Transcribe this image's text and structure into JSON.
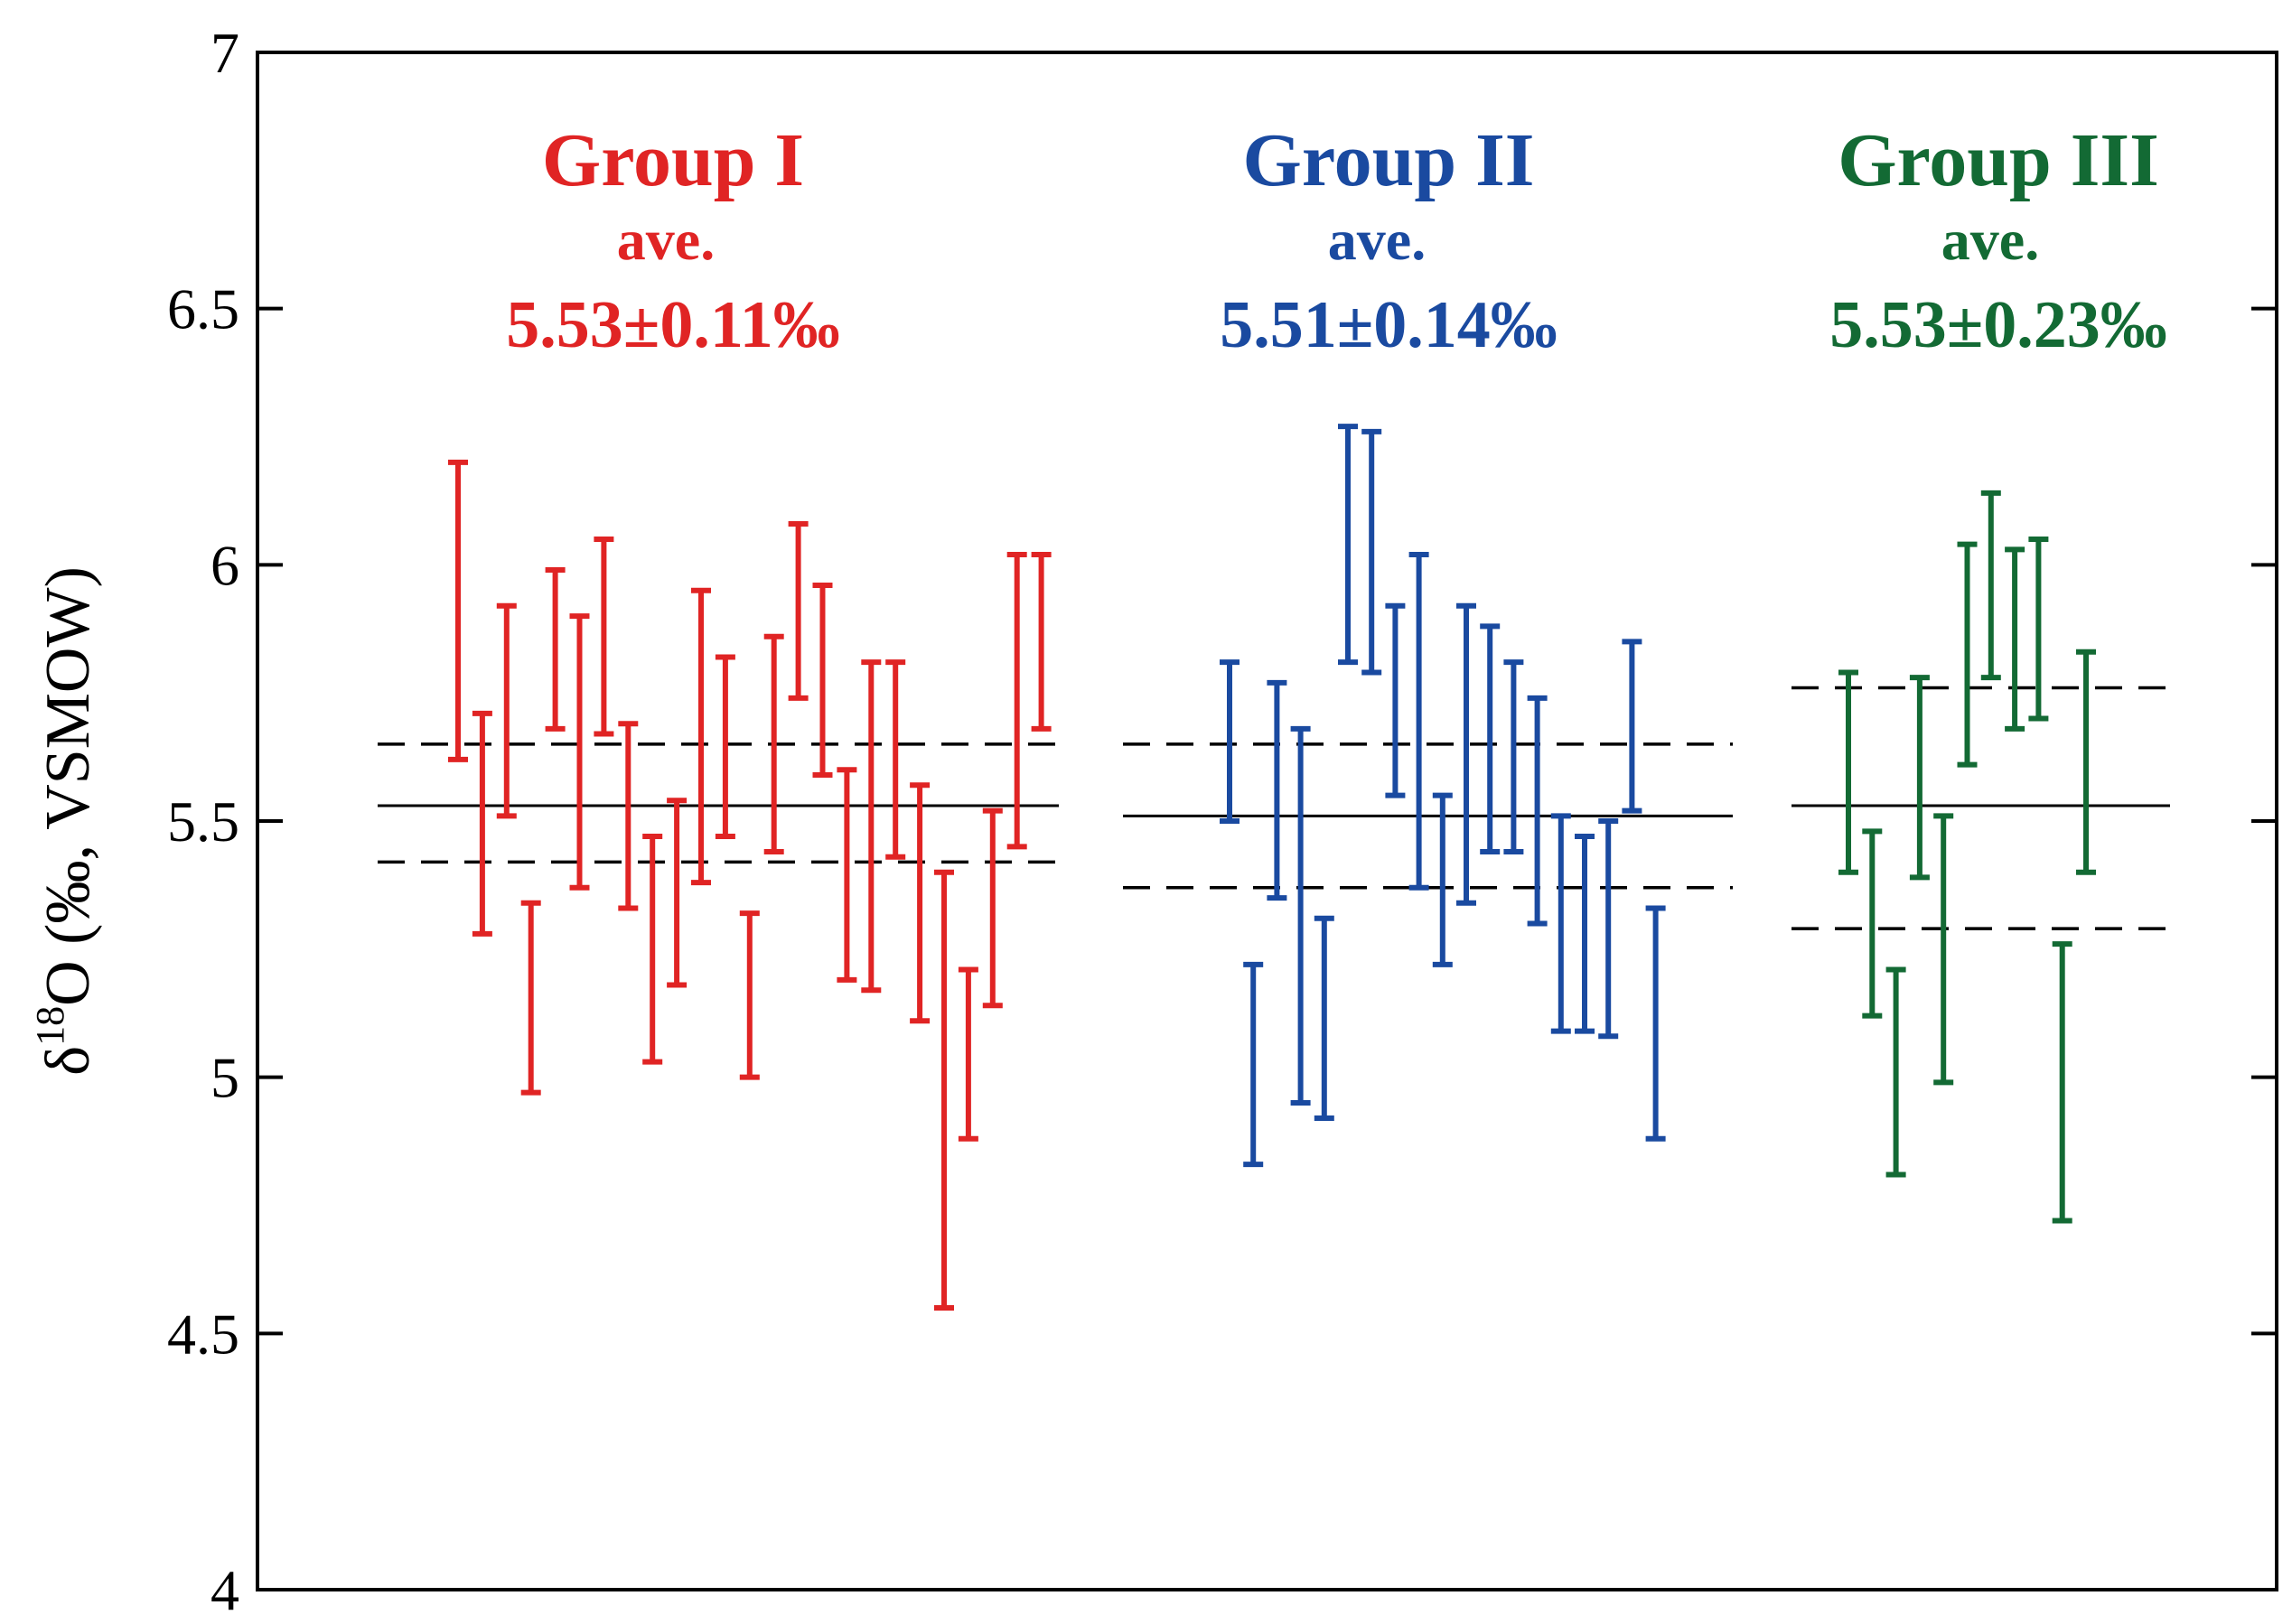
{
  "chart_data": {
    "type": "errorbar",
    "ylabel": {
      "delta": "δ",
      "superscript": "18",
      "rest": "O (‰, VSMOW)"
    },
    "ylim": [
      4,
      7
    ],
    "yticks": [
      4,
      4.5,
      5,
      5.5,
      6,
      6.5,
      7
    ],
    "ytick_labels": [
      "4",
      "4.5",
      "5",
      "5.5",
      "6",
      "6.5",
      "7"
    ],
    "groups": [
      {
        "name": "Group I",
        "ave_label": "ave.",
        "value_label": "5.53±0.11‰",
        "color": "#e02424",
        "mean": 5.53,
        "band": [
          5.42,
          5.65
        ],
        "bars": [
          [
            5.62,
            6.2
          ],
          [
            5.28,
            5.71
          ],
          [
            5.51,
            5.92
          ],
          [
            4.97,
            5.34
          ],
          [
            5.68,
            5.99
          ],
          [
            5.37,
            5.9
          ],
          [
            5.67,
            6.05
          ],
          [
            5.33,
            5.69
          ],
          [
            5.03,
            5.47
          ],
          [
            5.18,
            5.54
          ],
          [
            5.38,
            5.95
          ],
          [
            5.47,
            5.82
          ],
          [
            5.0,
            5.32
          ],
          [
            5.44,
            5.86
          ],
          [
            5.74,
            6.08
          ],
          [
            5.59,
            5.96
          ],
          [
            5.19,
            5.6
          ],
          [
            5.17,
            5.81
          ],
          [
            5.43,
            5.81
          ],
          [
            5.11,
            5.57
          ],
          [
            4.55,
            5.4
          ],
          [
            4.88,
            5.21
          ],
          [
            5.14,
            5.52
          ],
          [
            5.45,
            6.02
          ],
          [
            5.68,
            6.02
          ]
        ]
      },
      {
        "name": "Group II",
        "ave_label": "ave.",
        "value_label": "5.51±0.14‰",
        "color": "#1a4aa0",
        "mean": 5.51,
        "band": [
          5.37,
          5.65
        ],
        "bars": [
          [
            5.5,
            5.81
          ],
          [
            4.83,
            5.22
          ],
          [
            5.35,
            5.77
          ],
          [
            4.95,
            5.68
          ],
          [
            4.92,
            5.31
          ],
          [
            5.81,
            6.27
          ],
          [
            5.79,
            6.26
          ],
          [
            5.55,
            5.92
          ],
          [
            5.37,
            6.02
          ],
          [
            5.22,
            5.55
          ],
          [
            5.34,
            5.92
          ],
          [
            5.44,
            5.88
          ],
          [
            5.44,
            5.81
          ],
          [
            5.3,
            5.74
          ],
          [
            5.09,
            5.51
          ],
          [
            5.09,
            5.47
          ],
          [
            5.08,
            5.5
          ],
          [
            5.52,
            5.85
          ],
          [
            4.88,
            5.33
          ]
        ]
      },
      {
        "name": "Group III",
        "ave_label": "ave.",
        "value_label": "5.53±0.23‰",
        "color": "#136a34",
        "mean": 5.53,
        "band": [
          5.29,
          5.76
        ],
        "bars": [
          [
            5.4,
            5.79
          ],
          [
            5.12,
            5.48
          ],
          [
            4.81,
            5.21
          ],
          [
            5.39,
            5.78
          ],
          [
            4.99,
            5.51
          ],
          [
            5.61,
            6.04
          ],
          [
            5.78,
            6.14
          ],
          [
            5.68,
            6.03
          ],
          [
            5.7,
            6.05
          ],
          [
            4.72,
            5.26
          ],
          [
            5.4,
            5.83
          ]
        ]
      }
    ]
  }
}
